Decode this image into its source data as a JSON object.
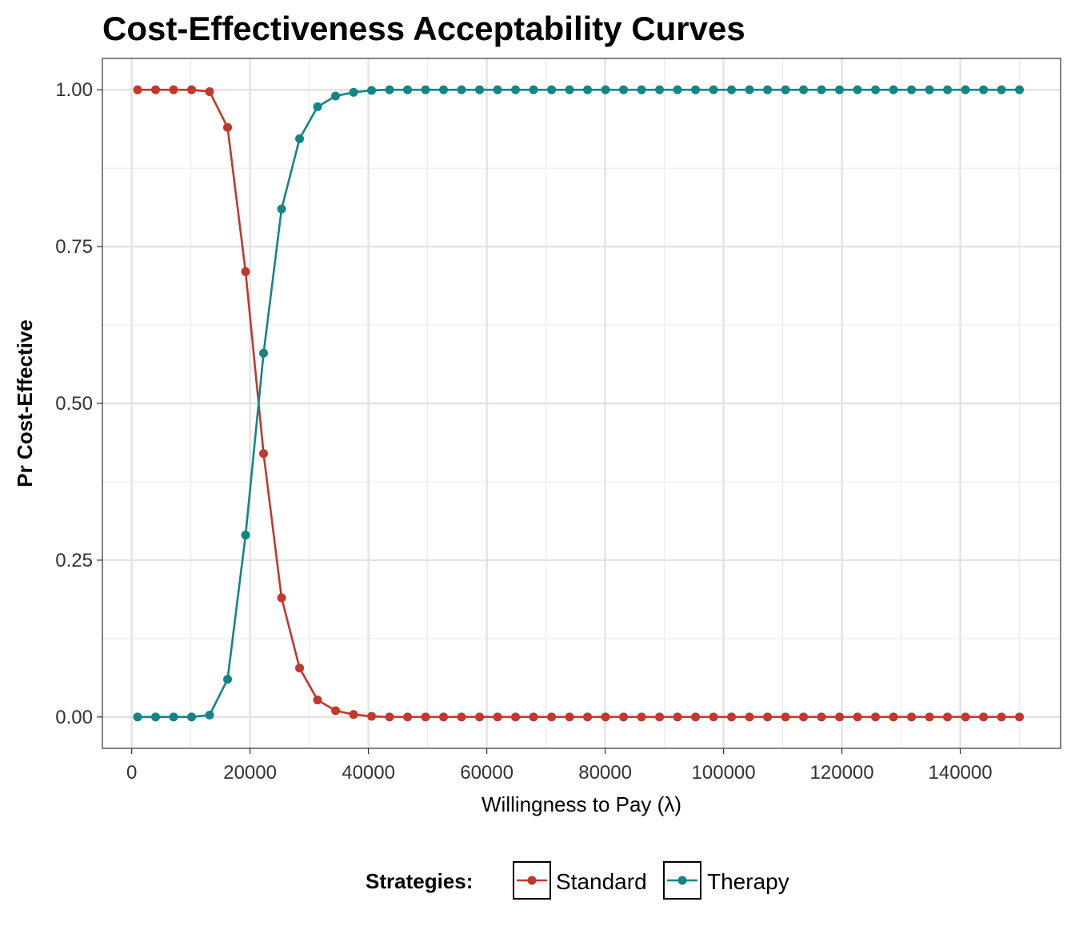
{
  "chart_data": {
    "type": "line",
    "title": "Cost-Effectiveness Acceptability Curves",
    "xlabel": "Willingness to Pay (λ)",
    "ylabel": "Pr Cost-Effective",
    "xlim": [
      -4950,
      156950
    ],
    "ylim": [
      -0.05,
      1.05
    ],
    "x_ticks": [
      0,
      20000,
      40000,
      60000,
      80000,
      100000,
      120000,
      140000
    ],
    "x_tick_labels": [
      "0",
      "20000",
      "40000",
      "60000",
      "80000",
      "100000",
      "120000",
      "140000"
    ],
    "y_ticks": [
      0,
      0.25,
      0.5,
      0.75,
      1.0
    ],
    "y_tick_labels": [
      "0.00",
      "0.25",
      "0.50",
      "0.75",
      "1.00"
    ],
    "grid": true,
    "legend": {
      "title": "Strategies:",
      "position": "bottom"
    },
    "x": [
      1000,
      4041,
      7082,
      10122,
      13163,
      16204,
      19245,
      22286,
      25327,
      28367,
      31408,
      34449,
      37490,
      40531,
      43571,
      46612,
      49653,
      52694,
      55735,
      58776,
      61816,
      64857,
      67898,
      70939,
      73980,
      77020,
      80061,
      83102,
      86143,
      89184,
      92224,
      95265,
      98306,
      101347,
      104388,
      107429,
      110469,
      113510,
      116551,
      119592,
      122633,
      125673,
      128714,
      131755,
      134796,
      137837,
      140878,
      143918,
      146959,
      150000
    ],
    "series": [
      {
        "name": "Standard",
        "color": "#c0392b",
        "values": [
          1.0,
          1.0,
          1.0,
          1.0,
          0.997,
          0.94,
          0.71,
          0.42,
          0.19,
          0.078,
          0.027,
          0.01,
          0.004,
          0.001,
          0,
          0,
          0,
          0,
          0,
          0,
          0,
          0,
          0,
          0,
          0,
          0,
          0,
          0,
          0,
          0,
          0,
          0,
          0,
          0,
          0,
          0,
          0,
          0,
          0,
          0,
          0,
          0,
          0,
          0,
          0,
          0,
          0,
          0,
          0,
          0
        ]
      },
      {
        "name": "Therapy",
        "color": "#138585",
        "values": [
          0,
          0,
          0,
          0,
          0.003,
          0.06,
          0.29,
          0.58,
          0.81,
          0.922,
          0.973,
          0.99,
          0.996,
          0.999,
          1.0,
          1.0,
          1.0,
          1.0,
          1.0,
          1.0,
          1.0,
          1.0,
          1.0,
          1.0,
          1.0,
          1.0,
          1.0,
          1.0,
          1.0,
          1.0,
          1.0,
          1.0,
          1.0,
          1.0,
          1.0,
          1.0,
          1.0,
          1.0,
          1.0,
          1.0,
          1.0,
          1.0,
          1.0,
          1.0,
          1.0,
          1.0,
          1.0,
          1.0,
          1.0,
          1.0
        ]
      }
    ]
  }
}
